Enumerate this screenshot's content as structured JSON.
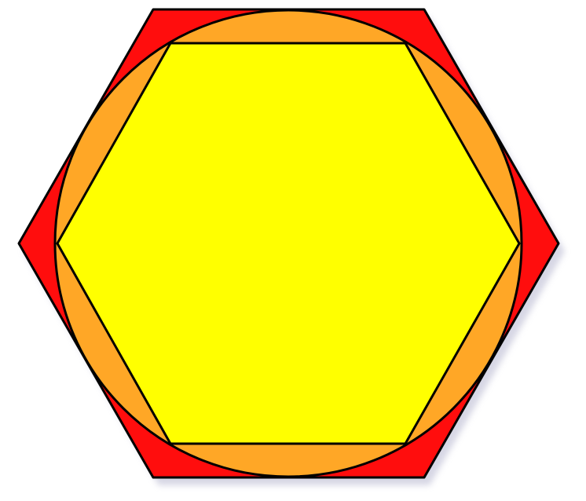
{
  "diagram": {
    "shapes": [
      {
        "name": "outer-hexagon",
        "kind": "regular-hexagon",
        "role": "circumscribes circle",
        "fill": "#ff0d0d",
        "stroke": "#000000"
      },
      {
        "name": "middle-circle",
        "kind": "circle",
        "role": "inscribed in outer hexagon",
        "fill": "#ffa726",
        "stroke": "#000000"
      },
      {
        "name": "inner-hexagon",
        "kind": "regular-hexagon",
        "role": "inscribed in circle",
        "fill": "#ffff00",
        "stroke": "#000000"
      }
    ],
    "shadow_color": "#c9c9dc"
  }
}
